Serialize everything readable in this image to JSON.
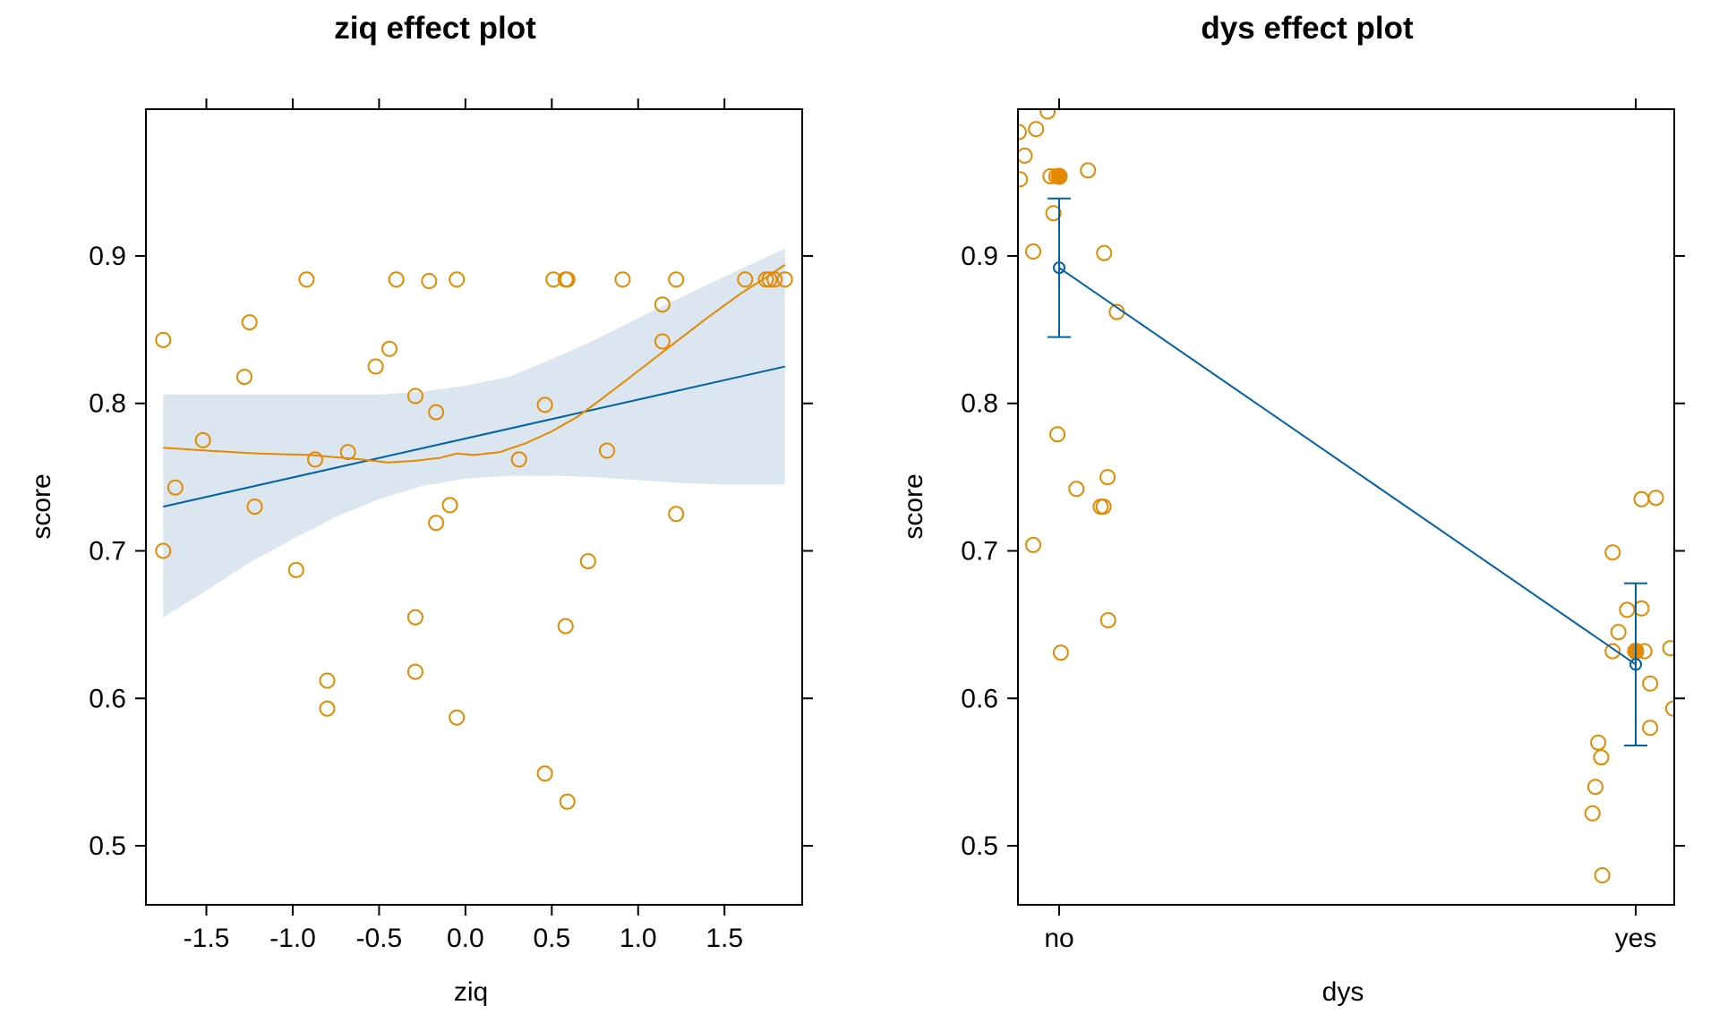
{
  "chart_data": [
    {
      "type": "line",
      "title": "ziq effect plot",
      "xlabel": "ziq",
      "ylabel": "score",
      "xlim": [
        -1.85,
        1.95
      ],
      "ylim": [
        0.46,
        0.9995
      ],
      "x_ticks": [
        -1.5,
        -1.0,
        -0.5,
        0.0,
        0.5,
        1.0,
        1.5
      ],
      "x_tick_labels": [
        "-1.5",
        "-1.0",
        "-0.5",
        "0.0",
        "0.5",
        "1.0",
        "1.5"
      ],
      "y_ticks": [
        0.5,
        0.6,
        0.7,
        0.8,
        0.9
      ],
      "y_tick_labels": [
        "0.5",
        "0.6",
        "0.7",
        "0.8",
        "0.9"
      ],
      "grid": false,
      "colors": {
        "fit": "#0060A8",
        "band": "#DCE6F0",
        "points": "#E38A00",
        "smooth": "#E38A00"
      },
      "fit_line": {
        "x": [
          -1.75,
          1.85
        ],
        "y": [
          0.73,
          0.825
        ]
      },
      "confidence_band": {
        "x": [
          -1.75,
          -1.5,
          -1.25,
          -1.0,
          -0.75,
          -0.5,
          -0.25,
          0.0,
          0.25,
          0.5,
          0.75,
          1.0,
          1.25,
          1.5,
          1.85
        ],
        "lower": [
          0.655,
          0.673,
          0.692,
          0.708,
          0.723,
          0.735,
          0.744,
          0.749,
          0.751,
          0.751,
          0.75,
          0.748,
          0.746,
          0.745,
          0.745
        ],
        "upper": [
          0.806,
          0.806,
          0.806,
          0.806,
          0.806,
          0.806,
          0.808,
          0.812,
          0.818,
          0.83,
          0.843,
          0.858,
          0.872,
          0.886,
          0.905
        ]
      },
      "smooth_line": {
        "x": [
          -1.75,
          -1.5,
          -1.2,
          -0.9,
          -0.6,
          -0.45,
          -0.3,
          -0.15,
          -0.05,
          0.05,
          0.2,
          0.35,
          0.5,
          0.65,
          0.8,
          1.0,
          1.2,
          1.4,
          1.6,
          1.75,
          1.85
        ],
        "y": [
          0.77,
          0.768,
          0.766,
          0.765,
          0.762,
          0.76,
          0.761,
          0.763,
          0.766,
          0.765,
          0.767,
          0.773,
          0.781,
          0.791,
          0.804,
          0.822,
          0.84,
          0.858,
          0.875,
          0.886,
          0.894
        ]
      },
      "points": {
        "x": [
          -1.75,
          -1.75,
          -1.68,
          -1.52,
          -1.28,
          -1.25,
          -1.22,
          -0.98,
          -0.92,
          -0.87,
          -0.8,
          -0.8,
          -0.68,
          -0.52,
          -0.44,
          -0.4,
          -0.29,
          -0.29,
          -0.29,
          -0.21,
          -0.17,
          -0.17,
          -0.09,
          -0.05,
          -0.05,
          0.31,
          0.46,
          0.46,
          0.51,
          0.58,
          0.58,
          0.59,
          0.59,
          0.71,
          0.82,
          0.91,
          1.14,
          1.14,
          1.22,
          1.22,
          1.62,
          1.74,
          1.76,
          1.79,
          1.85
        ],
        "y": [
          0.843,
          0.7,
          0.743,
          0.775,
          0.818,
          0.855,
          0.73,
          0.687,
          0.884,
          0.762,
          0.612,
          0.593,
          0.767,
          0.825,
          0.837,
          0.884,
          0.805,
          0.655,
          0.618,
          0.883,
          0.794,
          0.719,
          0.731,
          0.884,
          0.587,
          0.762,
          0.799,
          0.549,
          0.884,
          0.884,
          0.649,
          0.53,
          0.884,
          0.693,
          0.768,
          0.884,
          0.867,
          0.842,
          0.725,
          0.884,
          0.884,
          0.884,
          0.884,
          0.884,
          0.884
        ]
      }
    },
    {
      "type": "line",
      "title": "dys effect plot",
      "xlabel": "dys",
      "ylabel": "score",
      "categories": [
        "no",
        "yes"
      ],
      "ylim": [
        0.46,
        0.9995
      ],
      "y_ticks": [
        0.5,
        0.6,
        0.7,
        0.8,
        0.9
      ],
      "y_tick_labels": [
        "0.5",
        "0.6",
        "0.7",
        "0.8",
        "0.9"
      ],
      "grid": false,
      "colors": {
        "fit": "#0060A8",
        "points": "#E38A00",
        "mean": "#E38A00"
      },
      "estimates": [
        0.892,
        0.623
      ],
      "lower": [
        0.845,
        0.568
      ],
      "upper": [
        0.939,
        0.678
      ],
      "means": [
        0.954,
        0.632
      ],
      "points": [
        {
          "category": "no",
          "jitter": [
            -0.07,
            -0.06,
            -0.068,
            -0.02,
            -0.04,
            -0.015,
            -0.005,
            0.0,
            0.05,
            -0.01,
            -0.045,
            0.078,
            0.1,
            -0.003,
            0.03,
            0.077,
            -0.045,
            0.003,
            0.085,
            0.072,
            0.084
          ],
          "values": [
            0.984,
            0.968,
            0.952,
            0.998,
            0.986,
            0.954,
            0.954,
            0.954,
            0.958,
            0.929,
            0.903,
            0.902,
            0.862,
            0.779,
            0.742,
            0.73,
            0.704,
            0.631,
            0.653,
            0.73,
            0.75
          ]
        },
        {
          "category": "yes",
          "jitter": [
            0.01,
            0.035,
            -0.04,
            -0.04,
            -0.015,
            -0.03,
            0.0,
            0.01,
            0.025,
            0.06,
            -0.065,
            0.025,
            0.065,
            -0.07,
            -0.075,
            -0.06,
            -0.058,
            0.0,
            0.015
          ],
          "values": [
            0.735,
            0.736,
            0.699,
            0.632,
            0.66,
            0.645,
            0.632,
            0.661,
            0.61,
            0.634,
            0.57,
            0.58,
            0.593,
            0.54,
            0.522,
            0.56,
            0.48,
            0.632,
            0.632
          ]
        }
      ]
    }
  ]
}
